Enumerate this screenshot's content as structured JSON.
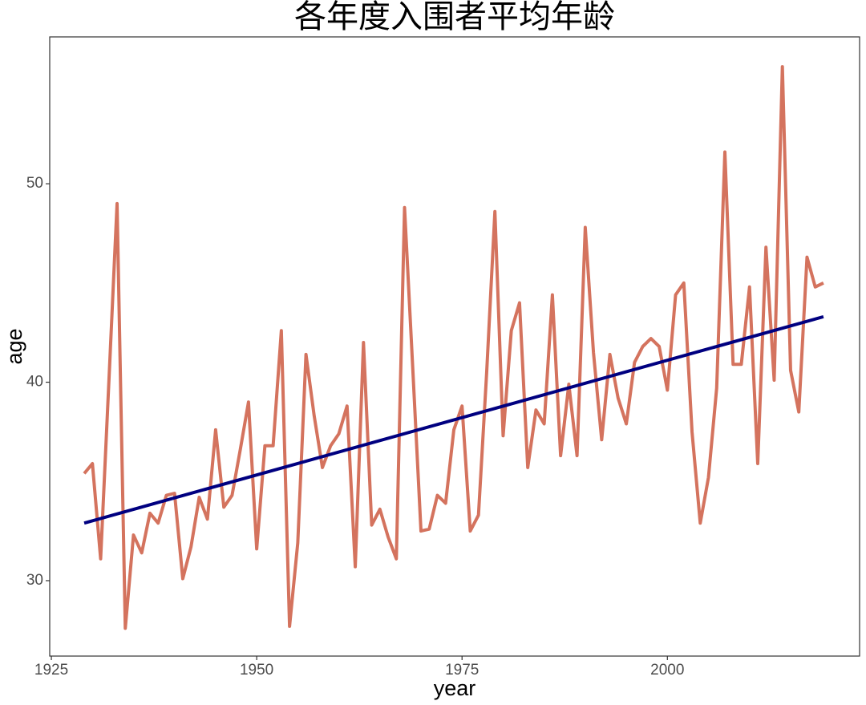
{
  "chart_data": {
    "type": "line",
    "title": "各年度入围者平均年龄",
    "x_label": "year",
    "y_label": "age",
    "x": [
      1929,
      1930,
      1931,
      1932,
      1933,
      1934,
      1935,
      1936,
      1937,
      1938,
      1939,
      1940,
      1941,
      1942,
      1943,
      1944,
      1945,
      1946,
      1947,
      1948,
      1949,
      1950,
      1951,
      1952,
      1953,
      1954,
      1955,
      1956,
      1957,
      1958,
      1959,
      1960,
      1961,
      1962,
      1963,
      1964,
      1965,
      1966,
      1967,
      1968,
      1969,
      1970,
      1971,
      1972,
      1973,
      1974,
      1975,
      1976,
      1977,
      1978,
      1979,
      1980,
      1981,
      1982,
      1983,
      1984,
      1985,
      1986,
      1987,
      1988,
      1989,
      1990,
      1991,
      1992,
      1993,
      1994,
      1995,
      1996,
      1997,
      1998,
      1999,
      2000,
      2001,
      2002,
      2003,
      2004,
      2005,
      2006,
      2007,
      2008,
      2009,
      2010,
      2011,
      2012,
      2013,
      2014,
      2015,
      2016,
      2017,
      2018,
      2019
    ],
    "series": [
      {
        "color": "#d4735e",
        "values": [
          35.4,
          35.9,
          31.1,
          40.0,
          49.0,
          27.6,
          32.3,
          31.4,
          33.4,
          32.9,
          34.3,
          34.4,
          30.1,
          31.7,
          34.2,
          33.1,
          37.6,
          33.7,
          34.3,
          36.6,
          39.0,
          31.6,
          36.8,
          36.8,
          42.6,
          27.7,
          31.9,
          41.4,
          38.3,
          35.7,
          36.8,
          37.4,
          38.8,
          30.7,
          42.0,
          32.8,
          33.6,
          32.2,
          31.1,
          48.8,
          40.7,
          32.5,
          32.6,
          34.3,
          33.9,
          37.6,
          38.8,
          32.5,
          33.3,
          40.5,
          48.6,
          37.3,
          42.6,
          44.0,
          35.7,
          38.6,
          37.9,
          44.4,
          36.3,
          39.9,
          36.3,
          47.8,
          41.5,
          37.1,
          41.4,
          39.2,
          37.9,
          41.0,
          41.8,
          42.2,
          41.8,
          39.6,
          44.4,
          45.0,
          37.5,
          32.9,
          35.2,
          39.7,
          51.6,
          40.9,
          40.9,
          44.8,
          35.9,
          46.8,
          40.1,
          55.9,
          40.6,
          38.5,
          46.3,
          44.8,
          45.0
        ]
      },
      {
        "color": "#000080",
        "x": [
          1929,
          2019
        ],
        "values": [
          32.9,
          43.3
        ]
      }
    ],
    "xlim": [
      1924.8,
      2023.4
    ],
    "xticks": [
      1925,
      1950,
      1975,
      2000
    ],
    "ylim": [
      26.2,
      57.4
    ],
    "yticks": [
      30,
      40,
      50
    ]
  }
}
